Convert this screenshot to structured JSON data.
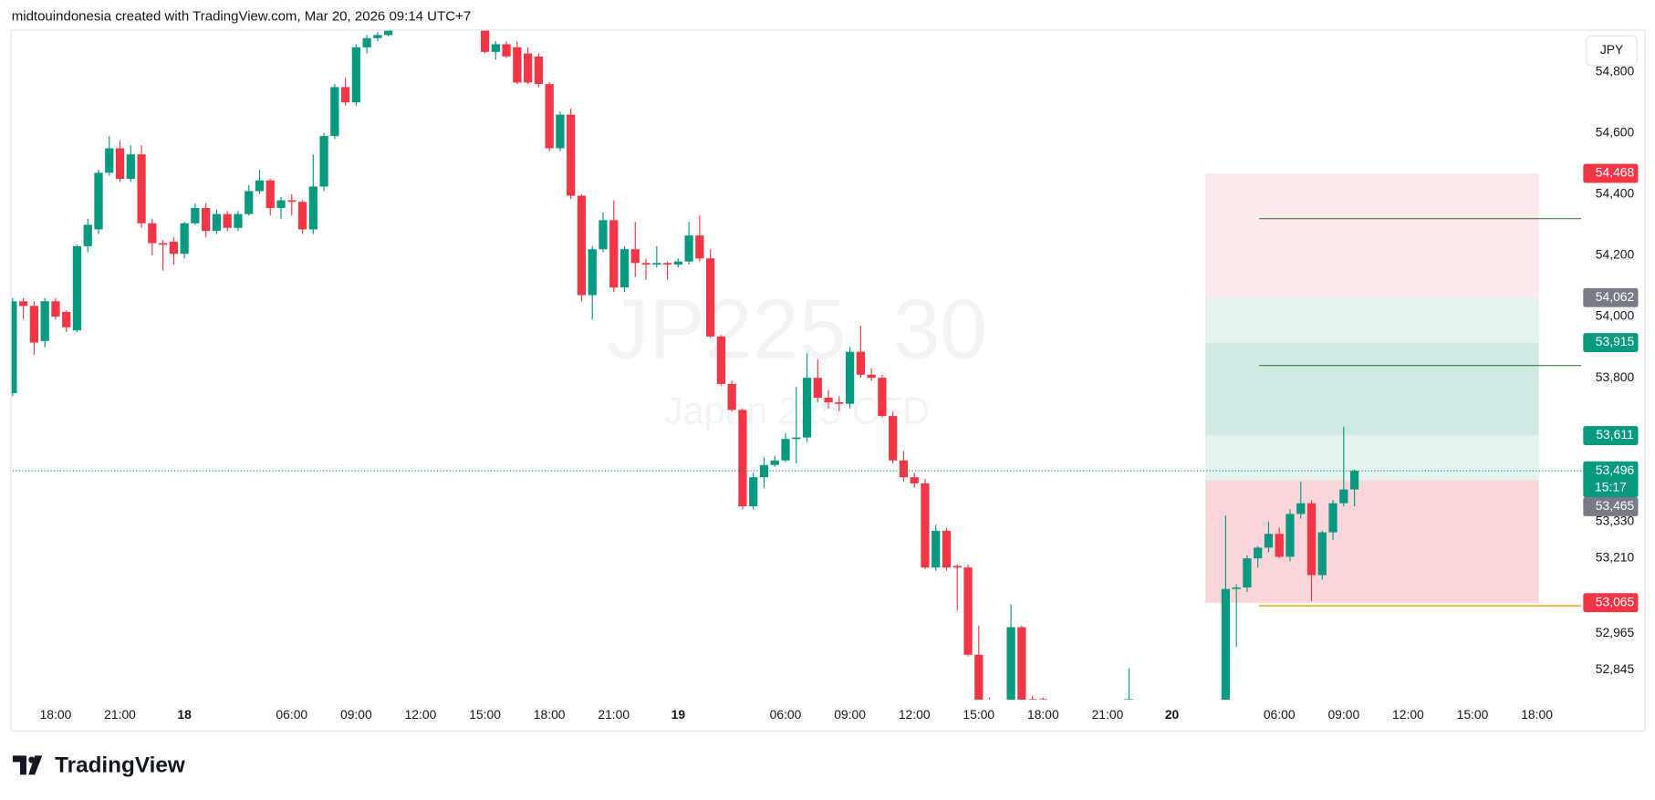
{
  "header": "midtouindonesia created with TradingView.com, Mar 20, 2026 09:14 UTC+7",
  "logo": "TradingView",
  "currency_button": "JPY",
  "chart_data": {
    "type": "candlestick",
    "watermark_title": "JP225, 30",
    "watermark_subtitle": "Japan 225 CFD",
    "up_color": "#089981",
    "down_color": "#f23645",
    "ylim": [
      52748,
      54931
    ],
    "yticks": [
      {
        "value": 54800,
        "label": "54,800"
      },
      {
        "value": 54600,
        "label": "54,600"
      },
      {
        "value": 54400,
        "label": "54,400"
      },
      {
        "value": 54200,
        "label": "54,200"
      },
      {
        "value": 54000,
        "label": "54,000"
      },
      {
        "value": 53800,
        "label": "53,800"
      },
      {
        "value": 53330,
        "label": "53,330"
      },
      {
        "value": 53210,
        "label": "53,210"
      },
      {
        "value": 52965,
        "label": "52,965"
      },
      {
        "value": 52845,
        "label": "52,845"
      }
    ],
    "categories": [
      null,
      null,
      null,
      null,
      "18:00",
      null,
      null,
      null,
      null,
      null,
      "21:00",
      null,
      null,
      null,
      null,
      null,
      "18",
      null,
      null,
      null,
      null,
      null,
      null,
      null,
      null,
      null,
      "06:00",
      null,
      null,
      null,
      null,
      null,
      "09:00",
      null,
      null,
      null,
      null,
      null,
      "12:00",
      null,
      null,
      null,
      null,
      null,
      "15:00",
      null,
      null,
      null,
      null,
      null,
      "18:00",
      null,
      null,
      null,
      null,
      null,
      "21:00",
      null,
      null,
      null,
      null,
      null,
      "19",
      null,
      null,
      null,
      null,
      null,
      null,
      null,
      null,
      null,
      "06:00",
      null,
      null,
      null,
      null,
      null,
      "09:00",
      null,
      null,
      null,
      null,
      null,
      "12:00",
      null,
      null,
      null,
      null,
      null,
      "15:00",
      null,
      null,
      null,
      null,
      null,
      "18:00",
      null,
      null,
      null,
      null,
      null,
      "21:00",
      null,
      null,
      null,
      null,
      null,
      "20",
      null,
      null,
      null,
      null,
      null,
      null,
      null,
      null,
      null,
      "06:00",
      null,
      null,
      null,
      null,
      null,
      "09:00",
      null,
      null,
      null,
      null,
      null,
      "12:00",
      null,
      null,
      null,
      null,
      null,
      "15:00",
      null,
      null,
      null,
      null,
      null,
      "18:00",
      null,
      null,
      null,
      null
    ],
    "open": [
      53750,
      54050,
      54035,
      53920,
      54050,
      54015,
      53955,
      54230,
      54285,
      54470,
      54550,
      54450,
      54530,
      54305,
      54240,
      54245,
      54205,
      54305,
      54355,
      54280,
      54335,
      54290,
      54335,
      54410,
      54445,
      54355,
      54380,
      54375,
      54285,
      54425,
      54590,
      54750,
      54700,
      54880,
      54910,
      54920,
      null,
      null,
      null,
      null,
      null,
      null,
      null,
      null,
      54935,
      54865,
      54890,
      54880,
      54860,
      54850,
      54760,
      54550,
      54660,
      54395,
      54070,
      54220,
      54315,
      54095,
      54220,
      54175,
      54170,
      54175,
      54170,
      54180,
      54265,
      54190,
      53935,
      53780,
      53695,
      53380,
      53475,
      53515,
      53530,
      53600,
      53605,
      53800,
      53735,
      53720,
      53715,
      53885,
      53810,
      53800,
      53675,
      53530,
      53475,
      53455,
      53180,
      53300,
      53185,
      53180,
      52895,
      52745,
      null,
      52720,
      52985,
      52750,
      52750,
      null,
      null,
      null,
      null,
      null,
      null,
      null,
      52740,
      null,
      null,
      null,
      null,
      null,
      null,
      null,
      null,
      52720,
      53110,
      53115,
      53210,
      53245,
      53290,
      53215,
      53355,
      53390,
      53155,
      53295,
      53390,
      53435,
      null,
      null,
      null,
      null,
      null,
      null,
      null,
      null,
      null,
      null,
      null,
      null,
      null,
      null,
      null,
      null,
      null,
      null,
      null,
      null,
      null
    ],
    "high": [
      54060,
      54060,
      54050,
      54060,
      54060,
      54020,
      54235,
      54320,
      54480,
      54590,
      54575,
      54560,
      54560,
      54320,
      54250,
      54260,
      54310,
      54370,
      54370,
      54350,
      54345,
      54345,
      54430,
      54480,
      54450,
      54390,
      54400,
      54380,
      54530,
      54600,
      54760,
      54780,
      54890,
      54920,
      54930,
      54940,
      null,
      null,
      null,
      null,
      null,
      null,
      null,
      null,
      54940,
      54900,
      54900,
      54900,
      54880,
      54860,
      54765,
      54670,
      54680,
      54400,
      54230,
      54340,
      54380,
      54230,
      54310,
      54190,
      54230,
      54180,
      54190,
      54310,
      54330,
      54220,
      53940,
      53790,
      53700,
      53490,
      53540,
      53545,
      53620,
      53770,
      53880,
      53860,
      53760,
      53740,
      53900,
      53970,
      53830,
      53810,
      53690,
      53560,
      53490,
      53470,
      53320,
      53310,
      53190,
      53190,
      52990,
      52755,
      null,
      53060,
      52990,
      52760,
      52755,
      null,
      null,
      null,
      null,
      null,
      null,
      null,
      52850,
      null,
      null,
      null,
      null,
      null,
      null,
      null,
      null,
      53350,
      53125,
      53220,
      53250,
      53330,
      53310,
      53370,
      53460,
      53400,
      53300,
      53400,
      53640,
      53500,
      null,
      null,
      null,
      null,
      null,
      null,
      null,
      null,
      null,
      null,
      null,
      null,
      null,
      null,
      null,
      null,
      null,
      null,
      null,
      null,
      null
    ],
    "low": [
      53740,
      53990,
      53875,
      53900,
      53990,
      53950,
      53950,
      54210,
      54270,
      54460,
      54440,
      54440,
      54290,
      54200,
      54150,
      54170,
      54190,
      54300,
      54260,
      54270,
      54280,
      54280,
      54330,
      54400,
      54330,
      54320,
      54330,
      54270,
      54270,
      54410,
      54580,
      54690,
      54690,
      54860,
      54900,
      54915,
      null,
      null,
      null,
      null,
      null,
      null,
      null,
      null,
      54860,
      54840,
      54845,
      54760,
      54760,
      54750,
      54540,
      54540,
      54385,
      54050,
      53990,
      54210,
      54080,
      54080,
      54130,
      54120,
      54160,
      54120,
      54160,
      54170,
      54180,
      53930,
      53775,
      53690,
      53370,
      53370,
      53440,
      53510,
      53525,
      53520,
      53590,
      53720,
      53700,
      53690,
      53700,
      53800,
      53790,
      53670,
      53520,
      53460,
      53440,
      53175,
      53170,
      53170,
      53040,
      52890,
      52700,
      52700,
      null,
      52700,
      52700,
      52700,
      52700,
      null,
      null,
      null,
      null,
      null,
      null,
      null,
      52730,
      null,
      null,
      null,
      null,
      null,
      null,
      null,
      null,
      52700,
      52920,
      53100,
      53180,
      53230,
      53210,
      53200,
      53340,
      53070,
      53140,
      53270,
      53380,
      53380,
      null,
      null,
      null,
      null,
      null,
      null,
      null,
      null,
      null,
      null,
      null,
      null,
      null,
      null,
      null,
      null,
      null,
      null,
      null,
      null,
      null
    ],
    "close": [
      54050,
      54035,
      53915,
      54050,
      54000,
      53965,
      54230,
      54300,
      54470,
      54550,
      54450,
      54530,
      54305,
      54240,
      54235,
      54205,
      54305,
      54355,
      54280,
      54335,
      54290,
      54335,
      54410,
      54445,
      54355,
      54380,
      54375,
      54285,
      54425,
      54590,
      54750,
      54700,
      54880,
      54910,
      54920,
      54935,
      null,
      null,
      null,
      null,
      null,
      null,
      null,
      null,
      54865,
      54890,
      54850,
      54765,
      54765,
      54760,
      54550,
      54660,
      54395,
      54070,
      54220,
      54315,
      54095,
      54220,
      54175,
      54170,
      54175,
      54170,
      54180,
      54265,
      54190,
      53935,
      53780,
      53695,
      53380,
      53475,
      53515,
      53530,
      53600,
      53605,
      53800,
      53735,
      53720,
      53715,
      53885,
      53810,
      53800,
      53675,
      53530,
      53475,
      53455,
      53180,
      53300,
      53180,
      53180,
      52895,
      52720,
      52740,
      null,
      52985,
      52720,
      52740,
      52745,
      null,
      null,
      null,
      null,
      null,
      null,
      null,
      52750,
      null,
      null,
      null,
      null,
      null,
      null,
      null,
      null,
      53110,
      53115,
      53210,
      53245,
      53290,
      53215,
      53355,
      53390,
      53155,
      53295,
      53390,
      53435,
      53496,
      null,
      null,
      null,
      null,
      null,
      null,
      null,
      null,
      null,
      null,
      null,
      null,
      null,
      null,
      null,
      null,
      null,
      null,
      null,
      null,
      null
    ],
    "zones": [
      {
        "from": 54468,
        "to": 54062,
        "color": "#fde8ea"
      },
      {
        "from": 54062,
        "to": 53915,
        "color": "#e5f4f1"
      },
      {
        "from": 53915,
        "to": 53611,
        "color": "#cfeae4"
      },
      {
        "from": 53611,
        "to": 53465,
        "color": "#e5f4f1"
      },
      {
        "from": 53465,
        "to": 53065,
        "color": "#fad6da"
      }
    ],
    "lines": [
      {
        "value": 54320,
        "color": "#3f7d4f"
      },
      {
        "value": 53840,
        "color": "#3f7d4f"
      },
      {
        "value": 53055,
        "color": "#f5b041"
      }
    ],
    "price_labels": [
      {
        "value": 54468,
        "label": "54,468",
        "color": "#f23645"
      },
      {
        "value": 54062,
        "label": "54,062",
        "color": "#787b86"
      },
      {
        "value": 53915,
        "label": "53,915",
        "color": "#089981"
      },
      {
        "value": 53611,
        "label": "53,611",
        "color": "#089981"
      },
      {
        "value": 53496,
        "label": "53,496",
        "countdown": "15:17",
        "color": "#089981"
      },
      {
        "value": 53465,
        "label": "53,465",
        "color": "#787b86"
      },
      {
        "value": 53065,
        "label": "53,065",
        "color": "#f23645"
      }
    ]
  }
}
